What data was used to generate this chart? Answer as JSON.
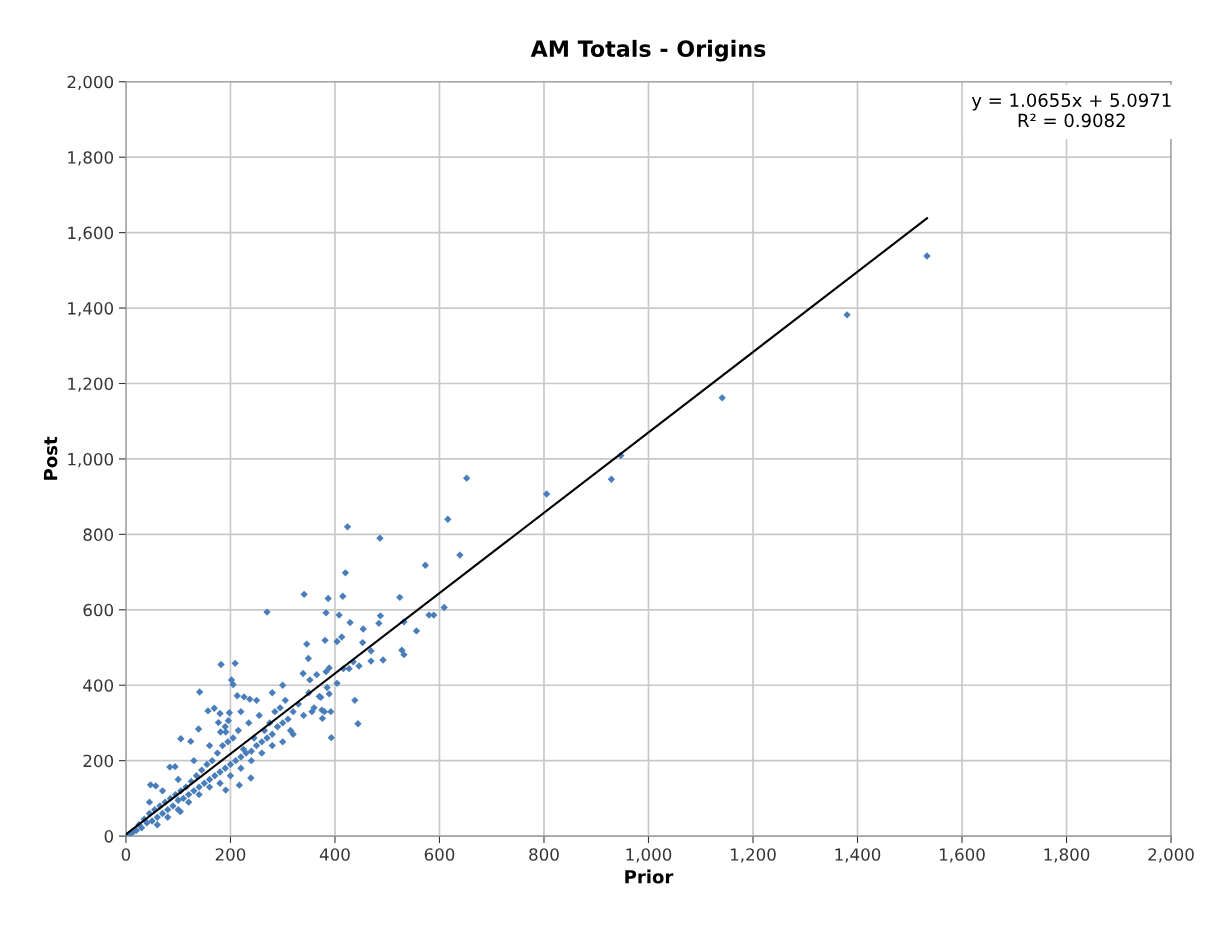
{
  "chart_data": {
    "type": "scatter",
    "title": "AM Totals - Origins",
    "xlabel": "Prior",
    "ylabel": "Post",
    "xlim": [
      0,
      2000
    ],
    "ylim": [
      0,
      2000
    ],
    "xticks": [
      0,
      200,
      400,
      600,
      800,
      {
        "value": 1000,
        "label": "1,000"
      },
      {
        "value": 1200,
        "label": "1,200"
      },
      {
        "value": 1400,
        "label": "1,400"
      },
      {
        "value": 1600,
        "label": "1,600"
      },
      {
        "value": 1800,
        "label": "1,800"
      },
      {
        "value": 2000,
        "label": "2,000"
      }
    ],
    "yticks": [
      0,
      200,
      400,
      600,
      800,
      {
        "value": 1000,
        "label": "1,000"
      },
      {
        "value": 1200,
        "label": "1,200"
      },
      {
        "value": 1400,
        "label": "1,400"
      },
      {
        "value": 1600,
        "label": "1,600"
      },
      {
        "value": 1800,
        "label": "1,800"
      },
      {
        "value": 2000,
        "label": "2,000"
      }
    ],
    "grid": true,
    "legend": false,
    "marker": "diamond",
    "annotations": [
      "y = 1.0655x + 5.0971",
      "R² = 0.9082"
    ],
    "series": [
      {
        "color": "#4a7ebb",
        "x": [
          1533,
          1380,
          1141,
          947,
          929,
          805,
          652,
          616,
          424,
          486,
          639,
          573,
          420,
          341,
          387,
          415,
          524,
          383,
          408,
          487,
          484,
          429,
          532,
          609,
          580,
          589,
          556,
          454,
          346,
          381,
          404,
          413,
          453,
          469,
          528,
          532,
          349,
          469,
          492,
          435,
          446,
          427,
          416,
          389,
          383,
          339,
          365,
          352,
          404,
          385,
          438,
          444,
          393,
          389,
          373,
          356,
          375,
          392,
          376,
          270,
          182,
          209,
          202,
          205,
          141,
          213,
          226,
          237,
          157,
          169,
          180,
          198,
          177,
          196,
          139,
          105,
          124,
          181,
          191,
          84,
          94,
          47,
          57,
          104,
          239,
          191,
          217,
          5,
          10,
          15,
          20,
          25,
          30,
          35,
          40,
          45,
          50,
          55,
          60,
          65,
          70,
          75,
          80,
          85,
          90,
          95,
          100,
          105,
          110,
          115,
          120,
          125,
          130,
          135,
          140,
          145,
          150,
          155,
          160,
          165,
          170,
          175,
          180,
          185,
          190,
          195,
          200,
          205,
          210,
          215,
          220,
          225,
          230,
          235,
          240,
          245,
          250,
          255,
          260,
          265,
          270,
          275,
          280,
          285,
          290,
          295,
          300,
          305,
          310,
          315,
          320,
          330,
          340,
          350,
          360,
          370,
          380,
          60,
          80,
          100,
          120,
          140,
          160,
          180,
          200,
          220,
          240,
          260,
          280,
          300,
          320,
          45,
          70,
          100,
          130,
          160,
          190,
          220,
          250,
          280,
          300
        ],
        "values": [
          1538,
          1382,
          1162,
          1009,
          946,
          907,
          949,
          840,
          820,
          790,
          745,
          718,
          698,
          641,
          630,
          636,
          633,
          592,
          586,
          584,
          564,
          566,
          568,
          606,
          586,
          586,
          544,
          549,
          509,
          519,
          516,
          528,
          513,
          491,
          493,
          481,
          471,
          464,
          467,
          462,
          451,
          444,
          444,
          446,
          436,
          431,
          428,
          414,
          405,
          394,
          360,
          298,
          261,
          377,
          368,
          330,
          334,
          330,
          312,
          594,
          455,
          458,
          414,
          402,
          382,
          372,
          369,
          363,
          332,
          339,
          325,
          327,
          301,
          306,
          284,
          258,
          251,
          276,
          276,
          183,
          184,
          136,
          133,
          65,
          154,
          122,
          135,
          3,
          8,
          12,
          15,
          30,
          22,
          45,
          35,
          60,
          40,
          70,
          50,
          80,
          60,
          90,
          70,
          100,
          80,
          110,
          95,
          120,
          100,
          130,
          110,
          145,
          120,
          160,
          130,
          175,
          140,
          190,
          150,
          200,
          160,
          220,
          170,
          240,
          180,
          250,
          190,
          260,
          200,
          280,
          210,
          230,
          220,
          300,
          225,
          260,
          240,
          320,
          250,
          280,
          260,
          300,
          270,
          330,
          290,
          340,
          300,
          360,
          310,
          280,
          330,
          350,
          320,
          380,
          340,
          370,
          330,
          30,
          50,
          70,
          90,
          110,
          130,
          140,
          160,
          180,
          200,
          220,
          240,
          250,
          270,
          90,
          120,
          150,
          200,
          240,
          290,
          330,
          360,
          380,
          400
        ]
      },
      {
        "type": "line",
        "color": "#000000",
        "marker": "none",
        "x": [
          0,
          1533
        ],
        "values": [
          5,
          1638
        ]
      }
    ]
  }
}
